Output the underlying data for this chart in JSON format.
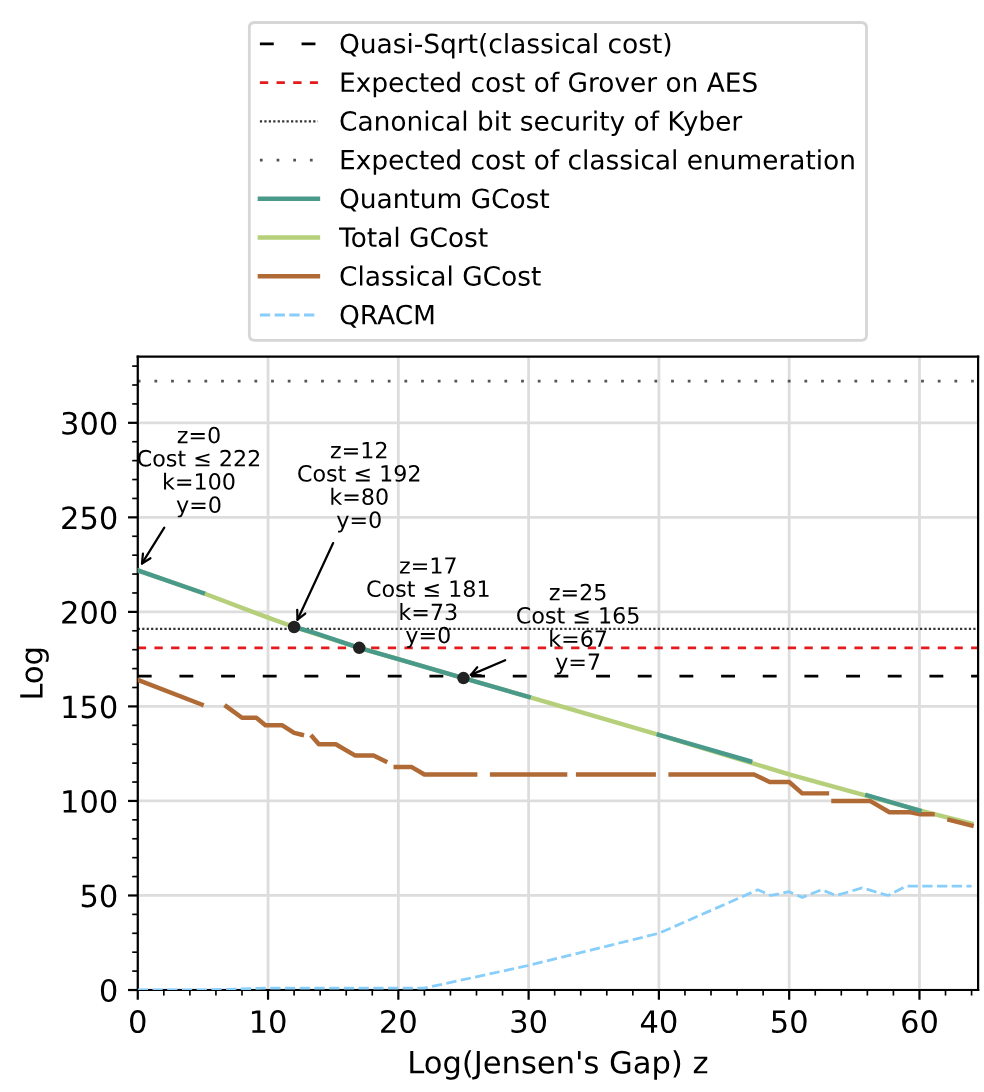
{
  "chart_data": {
    "type": "line",
    "xlabel": "Log(Jensen's Gap) z",
    "ylabel": "Log",
    "xlim": [
      0,
      64.5
    ],
    "ylim": [
      0,
      335
    ],
    "xticks": [
      0,
      10,
      20,
      30,
      40,
      50,
      60
    ],
    "yticks": [
      0,
      50,
      100,
      150,
      200,
      250,
      300
    ],
    "grid": true,
    "legend": "top",
    "ref_lines": [
      {
        "axis": "y",
        "value": 166,
        "label": "Quasi-Sqrt(classical cost)",
        "color": "#000000",
        "line_style": "dashed"
      },
      {
        "axis": "y",
        "value": 181,
        "label": "Expected cost of Grover on AES",
        "color": "#e41a1c",
        "line_style": "dashed"
      },
      {
        "axis": "y",
        "value": 191,
        "label": "Canonical bit security of Kyber",
        "color": "#333333",
        "line_style": "dotted"
      },
      {
        "axis": "y",
        "value": 322,
        "label": "Expected cost of classical enumeration",
        "color": "#555555",
        "line_style": "dotted"
      }
    ],
    "series": [
      {
        "name": "Quantum GCost",
        "color": "#4a9a8c",
        "x": [
          0,
          5,
          7.6,
          12,
          13.5,
          17,
          20,
          25,
          28,
          30,
          36,
          40,
          44,
          47,
          52,
          56,
          60
        ],
        "values": [
          222,
          210,
          null,
          192,
          189,
          181,
          175,
          165,
          159,
          155,
          null,
          135,
          127,
          121,
          null,
          103,
          95
        ]
      },
      {
        "name": "Total GCost",
        "color": "#b5cf7a",
        "x": [
          0,
          5,
          10,
          12,
          17,
          20,
          25,
          30,
          40,
          50,
          60,
          64
        ],
        "values": [
          222,
          210,
          197,
          192,
          181,
          175,
          165,
          155,
          135,
          114,
          95,
          88
        ]
      },
      {
        "name": "Classical GCost",
        "color": "#b06a36",
        "x": [
          0,
          4.9,
          5.5,
          6.8,
          8,
          9.1,
          9.8,
          11.1,
          12,
          12.6,
          13,
          13.4,
          13.9,
          15.2,
          16.7,
          18.1,
          19,
          19.4,
          19.8,
          21,
          22,
          25.9,
          26.5,
          27.2,
          32.8,
          33.3,
          33.8,
          39.6,
          40.2,
          40.9,
          47.3,
          48.5,
          50,
          51,
          52.9,
          53.2,
          53.4,
          56.2,
          57.7,
          59.3,
          60,
          61,
          61.6,
          62.3,
          64
        ],
        "values": [
          164,
          151,
          null,
          150,
          144,
          144,
          140,
          140,
          136,
          135,
          null,
          134,
          130,
          130,
          124,
          124,
          121,
          null,
          118,
          118,
          114,
          114,
          null,
          114,
          114,
          null,
          114,
          114,
          null,
          114,
          114,
          110,
          110,
          104,
          104,
          null,
          100,
          100,
          94,
          94,
          93,
          93,
          null,
          90,
          87
        ]
      },
      {
        "name": "QRACM",
        "color": "#87cefa",
        "line_style": "dashed",
        "x": [
          0,
          5,
          10,
          15,
          20,
          22,
          30,
          40,
          47.6,
          48.6,
          50,
          51,
          52.5,
          53.6,
          55.6,
          57.6,
          59,
          60,
          64
        ],
        "values": [
          0,
          0,
          1,
          1,
          1,
          1,
          13,
          30,
          53,
          50,
          52,
          49,
          53,
          50,
          54,
          50,
          55,
          55,
          55
        ]
      }
    ],
    "annotations": [
      {
        "text": "z=0\nCost ≤ 222\nk=100\ny=0",
        "x": 0,
        "y": 222
      },
      {
        "text": "z=12\nCost ≤ 192\nk=80\ny=0",
        "x": 12,
        "y": 192
      },
      {
        "text": "z=17\nCost ≤ 181\nk=73\ny=0",
        "x": 17,
        "y": 181
      },
      {
        "text": "z=25\nCost ≤ 165\nk=67\ny=7",
        "x": 25,
        "y": 165
      }
    ]
  }
}
